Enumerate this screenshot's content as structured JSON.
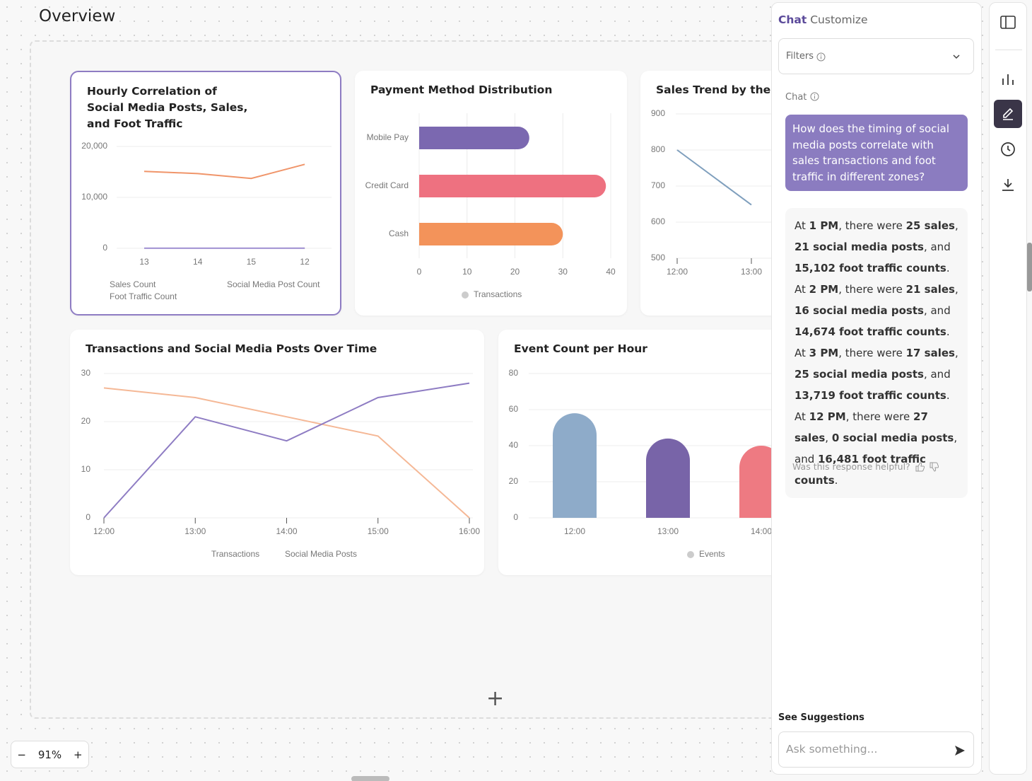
{
  "header": {
    "title": "Overview"
  },
  "zoom": "91%",
  "chart_data": [
    {
      "type": "line",
      "title": "Hourly Correlation of Social Media Posts, Sales, and Foot Traffic",
      "categories": [
        "13",
        "14",
        "15",
        "12"
      ],
      "series": [
        {
          "name": "Sales Count",
          "color": "#8e7cc3",
          "values": [
            25,
            21,
            17,
            27
          ]
        },
        {
          "name": "Social Media Post Count",
          "color": "#a99bd6",
          "values": [
            21,
            16,
            25,
            0
          ]
        },
        {
          "name": "Foot Traffic Count",
          "color": "#f0956a",
          "values": [
            15102,
            14674,
            13719,
            16481
          ]
        }
      ],
      "ylim": [
        0,
        20000
      ],
      "yticks": [
        0,
        {
          "value": 10000,
          "label": "10,000"
        },
        {
          "value": 20000,
          "label": "20,000"
        }
      ],
      "grid": true
    },
    {
      "type": "barh",
      "title": "Payment Method Distribution",
      "categories": [
        "Mobile Pay",
        "Credit Card",
        "Cash"
      ],
      "series": [
        {
          "name": "Transactions",
          "color": "#cccccc",
          "colors": [
            "#7b68b0",
            "#ee7180",
            "#f3935a"
          ],
          "values": [
            23,
            39,
            30
          ]
        }
      ],
      "xlim": [
        0,
        40
      ],
      "xticks": [
        0,
        10,
        20,
        30,
        40
      ],
      "grid": true
    },
    {
      "type": "line",
      "title": "Sales Trend by the Hour",
      "categories": [
        "12:00",
        "13:00"
      ],
      "series": [
        {
          "color": "#7f9fbd",
          "values": [
            800,
            648
          ]
        }
      ],
      "ylim": [
        500,
        900
      ],
      "yticks": [
        500,
        600,
        700,
        800,
        900
      ],
      "grid": true
    },
    {
      "type": "line",
      "title": "Transactions and Social Media Posts Over Time",
      "categories": [
        "12:00",
        "13:00",
        "14:00",
        "15:00",
        "16:00"
      ],
      "series": [
        {
          "name": "Transactions",
          "color": "#f5b896",
          "values": [
            27,
            25,
            21,
            17,
            0
          ]
        },
        {
          "name": "Social Media Posts",
          "color": "#8e7cc3",
          "values": [
            0,
            21,
            16,
            25,
            28
          ]
        }
      ],
      "ylim": [
        0,
        30
      ],
      "yticks": [
        0,
        10,
        20,
        30
      ],
      "grid": true
    },
    {
      "type": "bar",
      "title": "Event Count per Hour",
      "categories": [
        "12:00",
        "13:00",
        "14:00"
      ],
      "series": [
        {
          "name": "Events",
          "color": "#cccccc",
          "colors": [
            "#8eabc9",
            "#7864a8",
            "#ee7a82"
          ],
          "values": [
            58,
            44,
            40
          ]
        }
      ],
      "ylim": [
        0,
        80
      ],
      "yticks": [
        0,
        20,
        40,
        60,
        80
      ],
      "grid": true
    }
  ],
  "chat": {
    "tabs": [
      "Chat",
      "Customize"
    ],
    "filters_label": "Filters",
    "section_label": "Chat",
    "question": "How does the timing of social media posts correlate with sales transactions and foot traffic in different zones?",
    "response": [
      {
        "text": "At ",
        "bold": false
      },
      {
        "text": "1 PM",
        "bold": true
      },
      {
        "text": ", there were ",
        "bold": false
      },
      {
        "text": "25 sales",
        "bold": true
      },
      {
        "text": ", ",
        "bold": false
      },
      {
        "text": "21 social media posts",
        "bold": true
      },
      {
        "text": ", and ",
        "bold": false
      },
      {
        "text": "15,102 foot traffic counts",
        "bold": true
      },
      {
        "text": ". At ",
        "bold": false
      },
      {
        "text": "2 PM",
        "bold": true
      },
      {
        "text": ", there were ",
        "bold": false
      },
      {
        "text": "21 sales",
        "bold": true
      },
      {
        "text": ", ",
        "bold": false
      },
      {
        "text": "16 social media posts",
        "bold": true
      },
      {
        "text": ", and ",
        "bold": false
      },
      {
        "text": "14,674 foot traffic counts",
        "bold": true
      },
      {
        "text": ". At ",
        "bold": false
      },
      {
        "text": "3 PM",
        "bold": true
      },
      {
        "text": ", there were ",
        "bold": false
      },
      {
        "text": "17 sales",
        "bold": true
      },
      {
        "text": ", ",
        "bold": false
      },
      {
        "text": "25 social media posts",
        "bold": true
      },
      {
        "text": ", and ",
        "bold": false
      },
      {
        "text": "13,719 foot traffic counts",
        "bold": true
      },
      {
        "text": ". At ",
        "bold": false
      },
      {
        "text": "12 PM",
        "bold": true
      },
      {
        "text": ", there were ",
        "bold": false
      },
      {
        "text": "27 sales",
        "bold": true
      },
      {
        "text": ", ",
        "bold": false
      },
      {
        "text": "0 social media posts",
        "bold": true
      },
      {
        "text": ", and ",
        "bold": false
      },
      {
        "text": "16,481 foot traffic counts",
        "bold": true
      },
      {
        "text": ".",
        "bold": false
      }
    ],
    "feedback_prompt": "Was this response helpful?",
    "suggestions_label": "See Suggestions",
    "input_placeholder": "Ask something..."
  }
}
